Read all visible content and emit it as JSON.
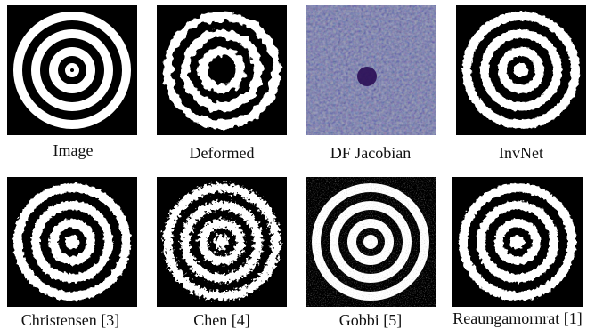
{
  "panels": [
    {
      "caption": "Image"
    },
    {
      "caption": "Deformed"
    },
    {
      "caption": "DF Jacobian"
    },
    {
      "caption": "InvNet"
    },
    {
      "caption": "Christensen [3]"
    },
    {
      "caption": "Chen [4]"
    },
    {
      "caption": "Gobbi [5]"
    },
    {
      "caption": "Reaungamornrat [1]"
    }
  ],
  "colors": {
    "background": "#000000",
    "ring": "#ffffff",
    "jacobian_base": "#3b2f86",
    "jacobian_high": "#f2e34a",
    "jacobian_mid": "#2a9d8f"
  }
}
